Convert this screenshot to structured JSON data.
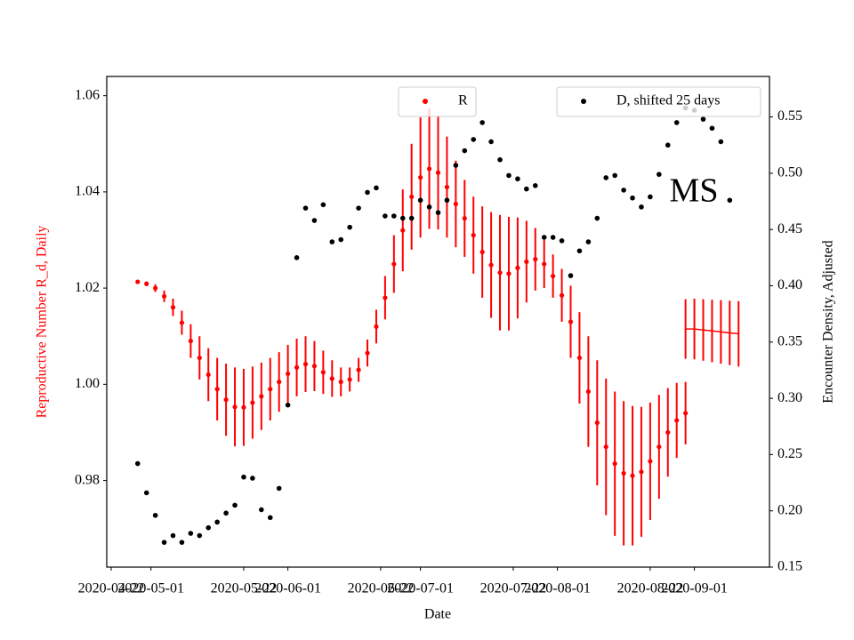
{
  "chart_data": {
    "type": "scatter",
    "annotation": "MS",
    "xlabel": "Date",
    "ylabel": "Reproductive Number R_d, Daily",
    "y2label": "Encounter Density, Adjusted",
    "ylabel_color": "#ff0000",
    "xlim": [
      "2020-04-21",
      "2020-09-18"
    ],
    "xticks": [
      "2020-04-22",
      "2020-05-01",
      "2020-05-22",
      "2020-06-01",
      "2020-06-22",
      "2020-07-01",
      "2020-07-22",
      "2020-08-01",
      "2020-08-22",
      "2020-09-01"
    ],
    "ylim": [
      0.962,
      1.064
    ],
    "yticks": [
      0.98,
      {
        "value": 1,
        "label": "1.00"
      },
      1.02,
      1.04,
      1.06
    ],
    "y2lim": [
      0.15,
      0.586
    ],
    "y2ticks": [
      0.15,
      {
        "value": 0.2,
        "label": "0.20"
      },
      0.25,
      {
        "value": 0.3,
        "label": "0.30"
      },
      0.35,
      {
        "value": 0.4,
        "label": "0.40"
      },
      0.45,
      {
        "value": 0.5,
        "label": "0.50"
      },
      0.55
    ],
    "series": [
      {
        "name": "R",
        "color": "#ff0000",
        "marker": "dot",
        "legend": "upper center",
        "x": [
          "2020-04-28",
          "2020-04-30",
          "2020-05-02",
          "2020-05-04",
          "2020-05-06",
          "2020-05-08",
          "2020-05-10",
          "2020-05-12",
          "2020-05-14",
          "2020-05-16",
          "2020-05-18",
          "2020-05-20",
          "2020-05-22",
          "2020-05-24",
          "2020-05-26",
          "2020-05-28",
          "2020-05-30",
          "2020-06-01",
          "2020-06-03",
          "2020-06-05",
          "2020-06-07",
          "2020-06-09",
          "2020-06-11",
          "2020-06-13",
          "2020-06-15",
          "2020-06-17",
          "2020-06-19",
          "2020-06-21",
          "2020-06-23",
          "2020-06-25",
          "2020-06-27",
          "2020-06-29",
          "2020-07-01",
          "2020-07-03",
          "2020-07-05",
          "2020-07-07",
          "2020-07-09",
          "2020-07-11",
          "2020-07-13",
          "2020-07-15",
          "2020-07-17",
          "2020-07-19",
          "2020-07-21",
          "2020-07-23",
          "2020-07-25",
          "2020-07-27",
          "2020-07-29",
          "2020-07-31",
          "2020-08-02",
          "2020-08-04",
          "2020-08-06",
          "2020-08-08",
          "2020-08-10",
          "2020-08-12",
          "2020-08-14",
          "2020-08-16",
          "2020-08-18",
          "2020-08-20",
          "2020-08-22",
          "2020-08-24",
          "2020-08-26",
          "2020-08-28",
          "2020-08-30"
        ],
        "values": [
          1.0213,
          1.0209,
          1.02,
          1.0183,
          1.016,
          1.0128,
          1.009,
          1.0055,
          1.002,
          0.999,
          0.9968,
          0.9953,
          0.9952,
          0.9962,
          0.9975,
          0.999,
          1.0005,
          1.0022,
          1.0035,
          1.0042,
          1.0038,
          1.0025,
          1.0012,
          1.0005,
          1.001,
          1.003,
          1.0065,
          1.012,
          1.018,
          1.025,
          1.032,
          1.039,
          1.043,
          1.0448,
          1.044,
          1.041,
          1.0375,
          1.0345,
          1.031,
          1.0275,
          1.0248,
          1.0232,
          1.023,
          1.0242,
          1.0255,
          1.026,
          1.025,
          1.0225,
          1.0185,
          1.013,
          1.0055,
          0.9985,
          0.992,
          0.987,
          0.9835,
          0.9815,
          0.981,
          0.9818,
          0.984,
          0.987,
          0.99,
          0.9925,
          0.994
        ],
        "errors": [
          0.0003,
          0.0005,
          0.0008,
          0.0012,
          0.0018,
          0.0025,
          0.0035,
          0.0045,
          0.0055,
          0.0065,
          0.0075,
          0.0082,
          0.008,
          0.0075,
          0.007,
          0.0065,
          0.0062,
          0.006,
          0.006,
          0.0058,
          0.0052,
          0.0045,
          0.0038,
          0.003,
          0.0025,
          0.0025,
          0.0028,
          0.0035,
          0.0045,
          0.006,
          0.0085,
          0.011,
          0.0125,
          0.0125,
          0.0118,
          0.0105,
          0.009,
          0.008,
          0.008,
          0.0095,
          0.011,
          0.012,
          0.0118,
          0.0105,
          0.0085,
          0.0065,
          0.005,
          0.0045,
          0.0055,
          0.0075,
          0.0095,
          0.0115,
          0.013,
          0.0142,
          0.015,
          0.015,
          0.0145,
          0.0135,
          0.0122,
          0.0108,
          0.0092,
          0.0078,
          0.0065
        ]
      },
      {
        "color": "#ff0000",
        "marker": "line",
        "x": [
          "2020-08-30",
          "2020-09-01",
          "2020-09-03",
          "2020-09-05",
          "2020-09-07",
          "2020-09-09",
          "2020-09-11"
        ],
        "values": [
          1.0115,
          1.0115,
          1.0113,
          1.0111,
          1.0109,
          1.0107,
          1.0105
        ],
        "errors": [
          0.0062,
          0.0063,
          0.0064,
          0.0065,
          0.0066,
          0.0067,
          0.0068
        ]
      },
      {
        "name": "D, shifted 25 days",
        "color": "#000000",
        "marker": "dot",
        "axis": "y2",
        "legend": "upper right",
        "x": [
          "2020-04-28",
          "2020-04-30",
          "2020-05-02",
          "2020-05-04",
          "2020-05-06",
          "2020-05-08",
          "2020-05-10",
          "2020-05-12",
          "2020-05-14",
          "2020-05-16",
          "2020-05-18",
          "2020-05-20",
          "2020-05-22",
          "2020-05-24",
          "2020-05-26",
          "2020-05-28",
          "2020-05-30",
          "2020-06-01",
          "2020-06-03",
          "2020-06-05",
          "2020-06-07",
          "2020-06-09",
          "2020-06-11",
          "2020-06-13",
          "2020-06-15",
          "2020-06-17",
          "2020-06-19",
          "2020-06-21",
          "2020-06-23",
          "2020-06-25",
          "2020-06-27",
          "2020-06-29",
          "2020-07-01",
          "2020-07-03",
          "2020-07-05",
          "2020-07-07",
          "2020-07-09",
          "2020-07-11",
          "2020-07-13",
          "2020-07-15",
          "2020-07-17",
          "2020-07-19",
          "2020-07-21",
          "2020-07-23",
          "2020-07-25",
          "2020-07-27",
          "2020-07-29",
          "2020-07-31",
          "2020-08-02",
          "2020-08-04",
          "2020-08-06",
          "2020-08-08",
          "2020-08-10",
          "2020-08-12",
          "2020-08-14",
          "2020-08-16",
          "2020-08-18",
          "2020-08-20",
          "2020-08-22",
          "2020-08-24",
          "2020-08-26",
          "2020-08-28",
          "2020-08-30",
          "2020-09-01",
          "2020-09-03",
          "2020-09-05",
          "2020-09-07",
          "2020-09-09"
        ],
        "values": [
          0.242,
          0.216,
          0.196,
          0.172,
          0.178,
          0.172,
          0.18,
          0.178,
          0.185,
          0.19,
          0.198,
          0.205,
          0.23,
          0.229,
          0.201,
          0.194,
          0.22,
          0.294,
          0.425,
          0.469,
          0.458,
          0.472,
          0.439,
          0.441,
          0.452,
          0.469,
          0.483,
          0.487,
          0.462,
          0.462,
          0.46,
          0.46,
          0.476,
          0.47,
          0.465,
          0.476,
          0.507,
          0.52,
          0.53,
          0.545,
          0.528,
          0.512,
          0.498,
          0.495,
          0.486,
          0.489,
          0.443,
          0.443,
          0.44,
          0.409,
          0.431,
          0.439,
          0.46,
          0.496,
          0.498,
          0.485,
          0.478,
          0.47,
          0.479,
          0.499,
          0.525,
          0.545,
          0.558,
          0.556,
          0.548,
          0.54,
          0.528,
          0.476
        ]
      }
    ]
  }
}
